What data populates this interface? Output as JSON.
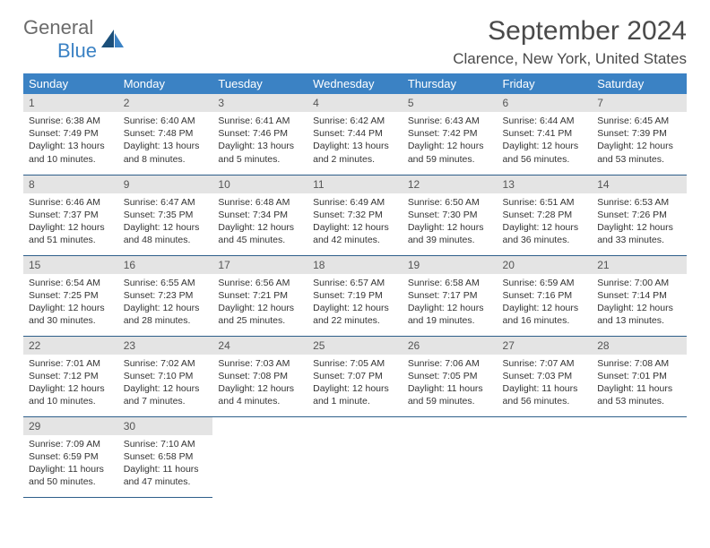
{
  "logo": {
    "part1": "General",
    "part2": "Blue"
  },
  "title": "September 2024",
  "location": "Clarence, New York, United States",
  "colors": {
    "header_bg": "#3b82c4",
    "header_text": "#ffffff",
    "daynum_bg": "#e4e4e4",
    "border": "#2e5f8a",
    "logo_blue": "#3b82c4",
    "logo_gray": "#6b6b6b"
  },
  "weekdays": [
    "Sunday",
    "Monday",
    "Tuesday",
    "Wednesday",
    "Thursday",
    "Friday",
    "Saturday"
  ],
  "days": [
    {
      "n": "1",
      "sr": "Sunrise: 6:38 AM",
      "ss": "Sunset: 7:49 PM",
      "dl": "Daylight: 13 hours and 10 minutes."
    },
    {
      "n": "2",
      "sr": "Sunrise: 6:40 AM",
      "ss": "Sunset: 7:48 PM",
      "dl": "Daylight: 13 hours and 8 minutes."
    },
    {
      "n": "3",
      "sr": "Sunrise: 6:41 AM",
      "ss": "Sunset: 7:46 PM",
      "dl": "Daylight: 13 hours and 5 minutes."
    },
    {
      "n": "4",
      "sr": "Sunrise: 6:42 AM",
      "ss": "Sunset: 7:44 PM",
      "dl": "Daylight: 13 hours and 2 minutes."
    },
    {
      "n": "5",
      "sr": "Sunrise: 6:43 AM",
      "ss": "Sunset: 7:42 PM",
      "dl": "Daylight: 12 hours and 59 minutes."
    },
    {
      "n": "6",
      "sr": "Sunrise: 6:44 AM",
      "ss": "Sunset: 7:41 PM",
      "dl": "Daylight: 12 hours and 56 minutes."
    },
    {
      "n": "7",
      "sr": "Sunrise: 6:45 AM",
      "ss": "Sunset: 7:39 PM",
      "dl": "Daylight: 12 hours and 53 minutes."
    },
    {
      "n": "8",
      "sr": "Sunrise: 6:46 AM",
      "ss": "Sunset: 7:37 PM",
      "dl": "Daylight: 12 hours and 51 minutes."
    },
    {
      "n": "9",
      "sr": "Sunrise: 6:47 AM",
      "ss": "Sunset: 7:35 PM",
      "dl": "Daylight: 12 hours and 48 minutes."
    },
    {
      "n": "10",
      "sr": "Sunrise: 6:48 AM",
      "ss": "Sunset: 7:34 PM",
      "dl": "Daylight: 12 hours and 45 minutes."
    },
    {
      "n": "11",
      "sr": "Sunrise: 6:49 AM",
      "ss": "Sunset: 7:32 PM",
      "dl": "Daylight: 12 hours and 42 minutes."
    },
    {
      "n": "12",
      "sr": "Sunrise: 6:50 AM",
      "ss": "Sunset: 7:30 PM",
      "dl": "Daylight: 12 hours and 39 minutes."
    },
    {
      "n": "13",
      "sr": "Sunrise: 6:51 AM",
      "ss": "Sunset: 7:28 PM",
      "dl": "Daylight: 12 hours and 36 minutes."
    },
    {
      "n": "14",
      "sr": "Sunrise: 6:53 AM",
      "ss": "Sunset: 7:26 PM",
      "dl": "Daylight: 12 hours and 33 minutes."
    },
    {
      "n": "15",
      "sr": "Sunrise: 6:54 AM",
      "ss": "Sunset: 7:25 PM",
      "dl": "Daylight: 12 hours and 30 minutes."
    },
    {
      "n": "16",
      "sr": "Sunrise: 6:55 AM",
      "ss": "Sunset: 7:23 PM",
      "dl": "Daylight: 12 hours and 28 minutes."
    },
    {
      "n": "17",
      "sr": "Sunrise: 6:56 AM",
      "ss": "Sunset: 7:21 PM",
      "dl": "Daylight: 12 hours and 25 minutes."
    },
    {
      "n": "18",
      "sr": "Sunrise: 6:57 AM",
      "ss": "Sunset: 7:19 PM",
      "dl": "Daylight: 12 hours and 22 minutes."
    },
    {
      "n": "19",
      "sr": "Sunrise: 6:58 AM",
      "ss": "Sunset: 7:17 PM",
      "dl": "Daylight: 12 hours and 19 minutes."
    },
    {
      "n": "20",
      "sr": "Sunrise: 6:59 AM",
      "ss": "Sunset: 7:16 PM",
      "dl": "Daylight: 12 hours and 16 minutes."
    },
    {
      "n": "21",
      "sr": "Sunrise: 7:00 AM",
      "ss": "Sunset: 7:14 PM",
      "dl": "Daylight: 12 hours and 13 minutes."
    },
    {
      "n": "22",
      "sr": "Sunrise: 7:01 AM",
      "ss": "Sunset: 7:12 PM",
      "dl": "Daylight: 12 hours and 10 minutes."
    },
    {
      "n": "23",
      "sr": "Sunrise: 7:02 AM",
      "ss": "Sunset: 7:10 PM",
      "dl": "Daylight: 12 hours and 7 minutes."
    },
    {
      "n": "24",
      "sr": "Sunrise: 7:03 AM",
      "ss": "Sunset: 7:08 PM",
      "dl": "Daylight: 12 hours and 4 minutes."
    },
    {
      "n": "25",
      "sr": "Sunrise: 7:05 AM",
      "ss": "Sunset: 7:07 PM",
      "dl": "Daylight: 12 hours and 1 minute."
    },
    {
      "n": "26",
      "sr": "Sunrise: 7:06 AM",
      "ss": "Sunset: 7:05 PM",
      "dl": "Daylight: 11 hours and 59 minutes."
    },
    {
      "n": "27",
      "sr": "Sunrise: 7:07 AM",
      "ss": "Sunset: 7:03 PM",
      "dl": "Daylight: 11 hours and 56 minutes."
    },
    {
      "n": "28",
      "sr": "Sunrise: 7:08 AM",
      "ss": "Sunset: 7:01 PM",
      "dl": "Daylight: 11 hours and 53 minutes."
    },
    {
      "n": "29",
      "sr": "Sunrise: 7:09 AM",
      "ss": "Sunset: 6:59 PM",
      "dl": "Daylight: 11 hours and 50 minutes."
    },
    {
      "n": "30",
      "sr": "Sunrise: 7:10 AM",
      "ss": "Sunset: 6:58 PM",
      "dl": "Daylight: 11 hours and 47 minutes."
    }
  ]
}
